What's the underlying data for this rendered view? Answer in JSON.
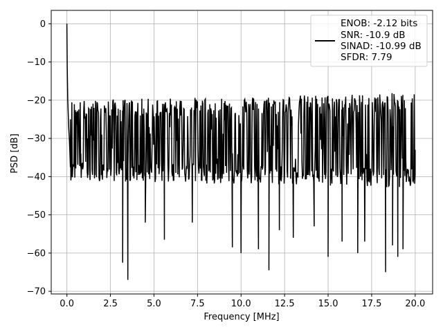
{
  "chart_data": {
    "type": "line",
    "title": "",
    "xlabel": "Frequency [MHz]",
    "ylabel": "PSD [dB]",
    "xlim": [
      -0.9,
      21.0
    ],
    "ylim": [
      -70.7,
      3.5
    ],
    "grid": true,
    "legend_placement": "top-right",
    "xticks": [
      0.0,
      2.5,
      5.0,
      7.5,
      10.0,
      12.5,
      15.0,
      17.5,
      20.0
    ],
    "xtick_labels": [
      "0.0",
      "2.5",
      "5.0",
      "7.5",
      "10.0",
      "12.5",
      "15.0",
      "17.5",
      "20.0"
    ],
    "yticks": [
      0,
      -10,
      -20,
      -30,
      -40,
      -50,
      -60,
      -70
    ],
    "ytick_labels": [
      "0",
      "−10",
      "−20",
      "−30",
      "−40",
      "−50",
      "−60",
      "−70"
    ],
    "legend": {
      "lines": [
        "ENOB: -2.12 bits",
        "SNR: -10.9 dB",
        "SINAD: -10.99 dB",
        "SFDR: 7.79"
      ]
    },
    "series": [
      {
        "line_color": "#000000",
        "x": [
          0.0,
          0.02,
          0.05,
          0.1,
          0.15,
          0.2,
          0.3,
          0.5,
          0.8,
          1.2,
          1.6,
          2.0,
          3.2,
          3.5,
          4.5,
          5.6,
          7.2,
          9.5,
          10.0,
          11.0,
          11.6,
          12.2,
          13.0,
          14.2,
          15.0,
          15.8,
          16.7,
          17.1,
          18.3,
          18.7,
          19.0,
          19.3,
          20.0
        ],
        "y": [
          0,
          -11,
          -20,
          -27,
          -31,
          -25,
          -33,
          -29,
          -34,
          -30,
          -32,
          -29,
          -62.5,
          -67,
          -52,
          -56.5,
          -52,
          -58.5,
          -60,
          -59,
          -64.5,
          -54,
          -56,
          -53,
          -61,
          -57,
          -60,
          -57,
          -65,
          -58,
          -61,
          -59,
          -33
        ]
      }
    ],
    "noise_band": {
      "upper_start": -25,
      "upper_end": -23,
      "lower_start": -36,
      "lower_end": -38
    }
  }
}
